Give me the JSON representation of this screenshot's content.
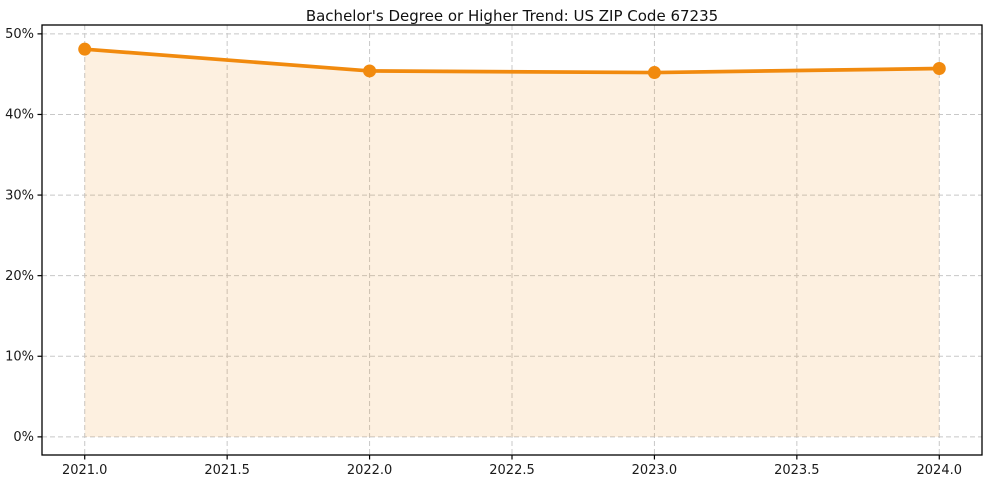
{
  "chart_data": {
    "type": "area",
    "title": "Bachelor's Degree or Higher Trend: US ZIP Code 67235",
    "x": [
      2021,
      2022,
      2023,
      2024
    ],
    "values": [
      48.1,
      45.4,
      45.2,
      45.7
    ],
    "xlabel": "",
    "ylabel": "",
    "xlim": [
      2020.85,
      2024.15
    ],
    "ylim": [
      -2.25,
      51.1
    ],
    "xticks": [
      2021.0,
      2021.5,
      2022.0,
      2022.5,
      2023.0,
      2023.5,
      2024.0
    ],
    "xtick_labels": [
      "2021.0",
      "2021.5",
      "2022.0",
      "2022.5",
      "2023.0",
      "2023.5",
      "2024.0"
    ],
    "yticks": [
      0,
      10,
      20,
      30,
      40,
      50
    ],
    "ytick_labels": [
      "0%",
      "10%",
      "20%",
      "30%",
      "40%",
      "50%"
    ],
    "grid": true,
    "legend": "none",
    "fill_baseline": 0,
    "colors": {
      "line": "#F18A0E",
      "marker": "#F18A0E",
      "fill": "rgba(241,138,14,0.13)",
      "grid": "#C8C8C8",
      "spine": "#000000",
      "tick": "#000000",
      "text": "#1a1a1a",
      "plot_bg": "#ffffff"
    }
  }
}
